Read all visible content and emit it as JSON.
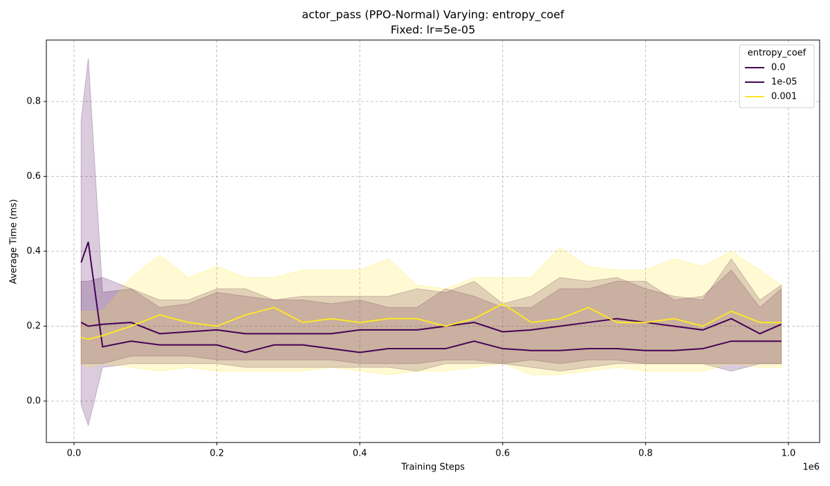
{
  "chart_data": {
    "type": "line",
    "title": "actor_pass (PPO-Normal) Varying: entropy_coef",
    "subtitle": "Fixed: lr=5e-05",
    "x_label": "Training Steps",
    "y_label": "Average Time (ms)",
    "x_offset_label": "1e6",
    "legend_title": "entropy_coef",
    "legend": "upper right",
    "grid": true,
    "x": [
      10000,
      20000,
      40000,
      80000,
      120000,
      160000,
      200000,
      240000,
      280000,
      320000,
      360000,
      400000,
      440000,
      480000,
      520000,
      560000,
      600000,
      640000,
      680000,
      720000,
      760000,
      800000,
      840000,
      880000,
      920000,
      960000,
      990000
    ],
    "xlim": [
      -38700,
      1043600
    ],
    "xticks": [
      {
        "value": 0,
        "label": "0.0"
      },
      {
        "value": 200000,
        "label": "0.2"
      },
      {
        "value": 400000,
        "label": "0.4"
      },
      {
        "value": 600000,
        "label": "0.6"
      },
      {
        "value": 800000,
        "label": "0.8"
      },
      {
        "value": 1000000,
        "label": "1.0"
      }
    ],
    "ylim": [
      -0.1106,
      0.964
    ],
    "yticks": [
      {
        "value": 0,
        "label": "0.0"
      },
      0.2,
      0.4,
      0.6,
      0.8
    ],
    "series": [
      {
        "name": "0.0",
        "color": "#440154",
        "values": [
          0.37,
          0.425,
          0.145,
          0.16,
          0.15,
          0.15,
          0.15,
          0.13,
          0.15,
          0.15,
          0.14,
          0.13,
          0.14,
          0.14,
          0.14,
          0.16,
          0.14,
          0.135,
          0.135,
          0.14,
          0.14,
          0.135,
          0.135,
          0.14,
          0.16,
          0.16,
          0.16
        ],
        "lower": [
          -0.01,
          -0.065,
          0.09,
          0.1,
          0.1,
          0.1,
          0.1,
          0.09,
          0.09,
          0.09,
          0.09,
          0.09,
          0.09,
          0.08,
          0.1,
          0.1,
          0.1,
          0.09,
          0.08,
          0.09,
          0.1,
          0.1,
          0.1,
          0.1,
          0.08,
          0.1,
          0.1
        ],
        "upper": [
          0.75,
          0.915,
          0.29,
          0.3,
          0.25,
          0.26,
          0.29,
          0.28,
          0.27,
          0.27,
          0.26,
          0.27,
          0.25,
          0.25,
          0.3,
          0.28,
          0.25,
          0.25,
          0.3,
          0.3,
          0.32,
          0.32,
          0.27,
          0.28,
          0.35,
          0.25,
          0.3
        ]
      },
      {
        "name": "1e-05",
        "color": "#440154",
        "values": [
          0.21,
          0.2,
          0.205,
          0.21,
          0.18,
          0.185,
          0.19,
          0.18,
          0.18,
          0.18,
          0.18,
          0.19,
          0.19,
          0.19,
          0.2,
          0.21,
          0.185,
          0.19,
          0.2,
          0.21,
          0.22,
          0.21,
          0.2,
          0.19,
          0.22,
          0.18,
          0.205
        ],
        "lower": [
          0.1,
          0.1,
          0.1,
          0.12,
          0.12,
          0.12,
          0.11,
          0.11,
          0.11,
          0.11,
          0.11,
          0.1,
          0.1,
          0.1,
          0.11,
          0.11,
          0.1,
          0.11,
          0.1,
          0.11,
          0.11,
          0.1,
          0.1,
          0.1,
          0.1,
          0.1,
          0.1
        ],
        "upper": [
          0.32,
          0.32,
          0.33,
          0.3,
          0.27,
          0.27,
          0.3,
          0.3,
          0.27,
          0.28,
          0.28,
          0.28,
          0.28,
          0.3,
          0.29,
          0.32,
          0.26,
          0.28,
          0.33,
          0.32,
          0.33,
          0.3,
          0.28,
          0.27,
          0.38,
          0.27,
          0.31
        ]
      },
      {
        "name": "0.001",
        "color": "#fde725",
        "values": [
          0.17,
          0.165,
          0.175,
          0.2,
          0.23,
          0.21,
          0.2,
          0.23,
          0.25,
          0.21,
          0.22,
          0.21,
          0.22,
          0.22,
          0.2,
          0.22,
          0.26,
          0.21,
          0.22,
          0.25,
          0.21,
          0.21,
          0.22,
          0.2,
          0.24,
          0.21,
          0.21
        ],
        "lower": [
          0.1,
          0.09,
          0.1,
          0.09,
          0.08,
          0.09,
          0.08,
          0.08,
          0.08,
          0.08,
          0.09,
          0.08,
          0.07,
          0.08,
          0.08,
          0.09,
          0.1,
          0.07,
          0.07,
          0.08,
          0.09,
          0.08,
          0.08,
          0.08,
          0.1,
          0.09,
          0.09
        ],
        "upper": [
          0.24,
          0.24,
          0.24,
          0.33,
          0.39,
          0.33,
          0.36,
          0.33,
          0.33,
          0.35,
          0.35,
          0.35,
          0.38,
          0.31,
          0.3,
          0.33,
          0.33,
          0.33,
          0.41,
          0.36,
          0.35,
          0.35,
          0.38,
          0.36,
          0.4,
          0.35,
          0.31
        ]
      }
    ]
  }
}
